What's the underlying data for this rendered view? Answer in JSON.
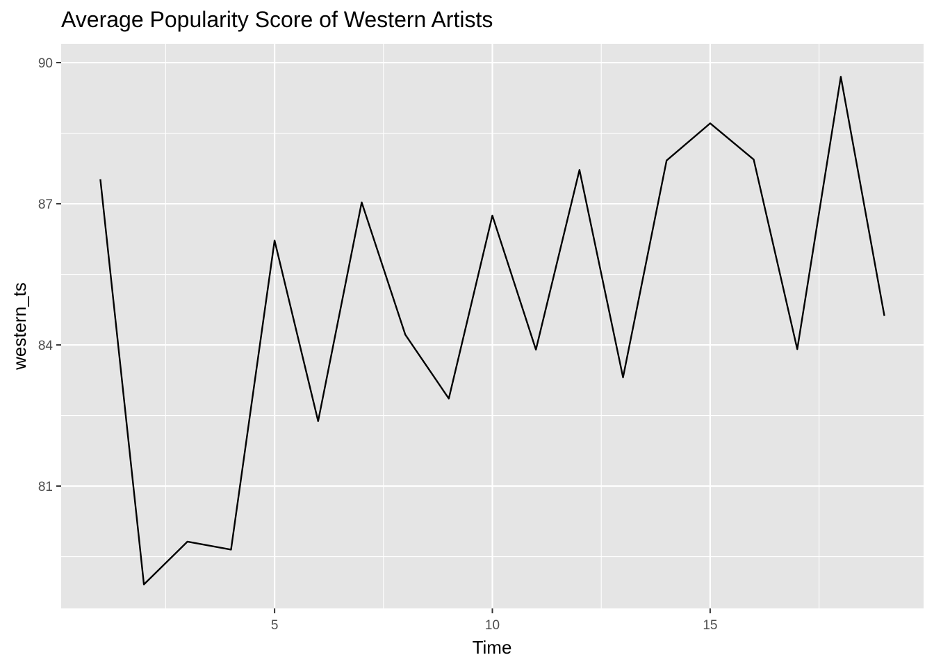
{
  "chart_data": {
    "type": "line",
    "title": "Average Popularity Score of Western Artists",
    "xlabel": "Time",
    "ylabel": "western_ts",
    "x": [
      1,
      2,
      3,
      4,
      5,
      6,
      7,
      8,
      9,
      10,
      11,
      12,
      13,
      14,
      15,
      16,
      17,
      18,
      19
    ],
    "series": [
      {
        "values": [
          87.52,
          78.91,
          79.82,
          79.65,
          86.22,
          82.38,
          87.03,
          84.22,
          82.86,
          86.75,
          83.9,
          87.72,
          83.31,
          87.92,
          88.71,
          87.94,
          83.91,
          89.7,
          84.62
        ]
      }
    ],
    "xlim": [
      0.1,
      19.9
    ],
    "ylim": [
      78.4,
      90.4
    ],
    "x_ticks": [
      5,
      10,
      15
    ],
    "x_tick_labels": [
      "5",
      "10",
      "15"
    ],
    "y_ticks": [
      81,
      84,
      87,
      90
    ],
    "y_tick_labels": [
      "81",
      "84",
      "87",
      "90"
    ],
    "x_minor_ticks": [
      2.5,
      7.5,
      12.5,
      17.5
    ],
    "y_minor_ticks": [
      79.5,
      82.5,
      85.5,
      88.5
    ],
    "grid": true,
    "legend": "none",
    "colors": {
      "panel": "#e5e5e5",
      "grid": "#ffffff",
      "line": "#000000",
      "tick_label": "#4d4d4d",
      "tick_mark": "#333333"
    }
  }
}
